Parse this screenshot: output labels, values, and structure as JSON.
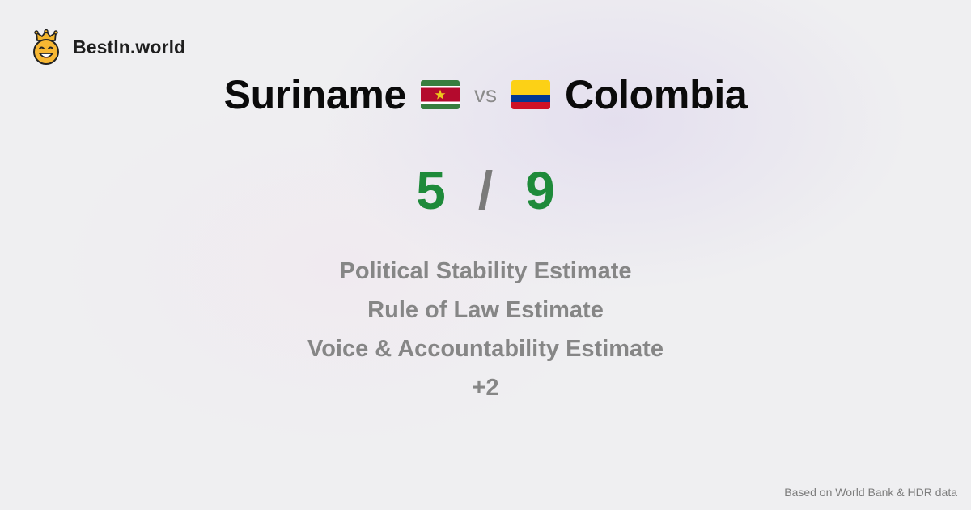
{
  "brand": {
    "name": "BestIn.world",
    "logo_icon": "crown-smiley-icon"
  },
  "comparison": {
    "left_country": "Suriname",
    "left_flag_icon": "suriname-flag-icon",
    "vs_label": "vs",
    "right_country": "Colombia",
    "right_flag_icon": "colombia-flag-icon"
  },
  "score": {
    "left": "5",
    "separator": "/",
    "right": "9"
  },
  "metrics": [
    "Political Stability Estimate",
    "Rule of Law Estimate",
    "Voice & Accountability Estimate"
  ],
  "more_label": "+2",
  "footer": {
    "source": "Based on World Bank & HDR data"
  },
  "colors": {
    "score": "#1e8a3a",
    "metric_text": "#868686",
    "background": "#efeff1"
  }
}
